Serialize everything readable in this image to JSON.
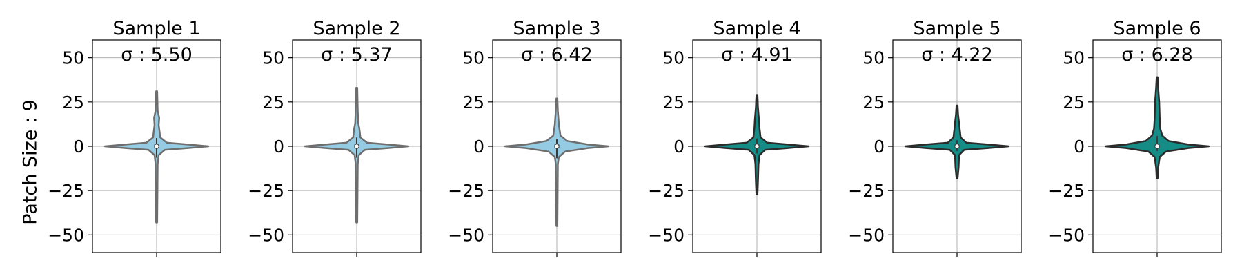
{
  "figure": {
    "ylabel": "Patch Size : 9",
    "colors": {
      "light_fill": "#95CCE4",
      "light_edge": "#6E6E6E",
      "dark_fill": "#158C86",
      "dark_edge": "#2B2B2B",
      "grid": "#B0B0B0"
    }
  },
  "chart_data": [
    {
      "type": "violin",
      "title": "Sample 1",
      "annotation": "σ : 5.50",
      "ylim": [
        -60,
        60
      ],
      "yticks": [
        50,
        25,
        0,
        -25,
        -50
      ],
      "ytick_labels": [
        "50",
        "25",
        "0",
        "−25",
        "−50"
      ],
      "grid": true,
      "style": "light",
      "min": -43,
      "max": 31,
      "shape": [
        [
          -43,
          0.01
        ],
        [
          -10,
          0.02
        ],
        [
          -5,
          0.04
        ],
        [
          -2,
          0.16
        ],
        [
          -1,
          0.6
        ],
        [
          0,
          1.0
        ],
        [
          1,
          0.6
        ],
        [
          2,
          0.2
        ],
        [
          5,
          0.07
        ],
        [
          12,
          0.04
        ],
        [
          16,
          0.05
        ],
        [
          20,
          0.02
        ],
        [
          31,
          0.01
        ]
      ]
    },
    {
      "type": "violin",
      "title": "Sample 2",
      "annotation": "σ : 5.37",
      "ylim": [
        -60,
        60
      ],
      "yticks": [
        50,
        25,
        0,
        -25,
        -50
      ],
      "ytick_labels": [
        "50",
        "25",
        "0",
        "−25",
        "−50"
      ],
      "grid": true,
      "style": "light",
      "min": -43,
      "max": 33,
      "shape": [
        [
          -43,
          0.01
        ],
        [
          -10,
          0.02
        ],
        [
          -5,
          0.04
        ],
        [
          -2,
          0.16
        ],
        [
          -1,
          0.6
        ],
        [
          0,
          1.0
        ],
        [
          1,
          0.6
        ],
        [
          2,
          0.2
        ],
        [
          5,
          0.07
        ],
        [
          10,
          0.05
        ],
        [
          13,
          0.03
        ],
        [
          20,
          0.02
        ],
        [
          33,
          0.01
        ]
      ]
    },
    {
      "type": "violin",
      "title": "Sample 3",
      "annotation": "σ : 6.42",
      "ylim": [
        -60,
        60
      ],
      "yticks": [
        50,
        25,
        0,
        -25,
        -50
      ],
      "ytick_labels": [
        "50",
        "25",
        "0",
        "−25",
        "−50"
      ],
      "grid": true,
      "style": "light",
      "min": -45,
      "max": 27,
      "shape": [
        [
          -45,
          0.01
        ],
        [
          -10,
          0.02
        ],
        [
          -6,
          0.04
        ],
        [
          -3,
          0.16
        ],
        [
          -1,
          0.6
        ],
        [
          0,
          1.0
        ],
        [
          1,
          0.6
        ],
        [
          3,
          0.2
        ],
        [
          6,
          0.07
        ],
        [
          12,
          0.04
        ],
        [
          20,
          0.02
        ],
        [
          27,
          0.01
        ]
      ]
    },
    {
      "type": "violin",
      "title": "Sample 4",
      "annotation": "σ : 4.91",
      "ylim": [
        -60,
        60
      ],
      "yticks": [
        50,
        25,
        0,
        -25,
        -50
      ],
      "ytick_labels": [
        "50",
        "25",
        "0",
        "−25",
        "−50"
      ],
      "grid": true,
      "style": "dark",
      "min": -27,
      "max": 29,
      "shape": [
        [
          -27,
          0.01
        ],
        [
          -20,
          0.02
        ],
        [
          -10,
          0.03
        ],
        [
          -5,
          0.05
        ],
        [
          -2,
          0.16
        ],
        [
          -1,
          0.6
        ],
        [
          0,
          1.0
        ],
        [
          1,
          0.6
        ],
        [
          2,
          0.2
        ],
        [
          5,
          0.07
        ],
        [
          10,
          0.05
        ],
        [
          15,
          0.04
        ],
        [
          22,
          0.02
        ],
        [
          29,
          0.01
        ]
      ]
    },
    {
      "type": "violin",
      "title": "Sample 5",
      "annotation": "σ : 4.22",
      "ylim": [
        -60,
        60
      ],
      "yticks": [
        50,
        25,
        0,
        -25,
        -50
      ],
      "ytick_labels": [
        "50",
        "25",
        "0",
        "−25",
        "−50"
      ],
      "grid": true,
      "style": "dark",
      "min": -18,
      "max": 23,
      "shape": [
        [
          -18,
          0.01
        ],
        [
          -12,
          0.03
        ],
        [
          -5,
          0.04
        ],
        [
          -2,
          0.14
        ],
        [
          -1,
          0.6
        ],
        [
          0,
          1.0
        ],
        [
          1,
          0.6
        ],
        [
          2,
          0.18
        ],
        [
          5,
          0.07
        ],
        [
          10,
          0.05
        ],
        [
          13,
          0.04
        ],
        [
          18,
          0.02
        ],
        [
          23,
          0.01
        ]
      ]
    },
    {
      "type": "violin",
      "title": "Sample 6",
      "annotation": "σ : 6.28",
      "ylim": [
        -60,
        60
      ],
      "yticks": [
        50,
        25,
        0,
        -25,
        -50
      ],
      "ytick_labels": [
        "50",
        "25",
        "0",
        "−25",
        "−50"
      ],
      "grid": true,
      "style": "dark",
      "min": -18,
      "max": 39,
      "shape": [
        [
          -18,
          0.01
        ],
        [
          -12,
          0.02
        ],
        [
          -6,
          0.05
        ],
        [
          -3,
          0.17
        ],
        [
          -1,
          0.6
        ],
        [
          0,
          1.0
        ],
        [
          1,
          0.6
        ],
        [
          3,
          0.22
        ],
        [
          6,
          0.1
        ],
        [
          10,
          0.06
        ],
        [
          15,
          0.05
        ],
        [
          25,
          0.04
        ],
        [
          33,
          0.02
        ],
        [
          39,
          0.01
        ]
      ]
    }
  ]
}
